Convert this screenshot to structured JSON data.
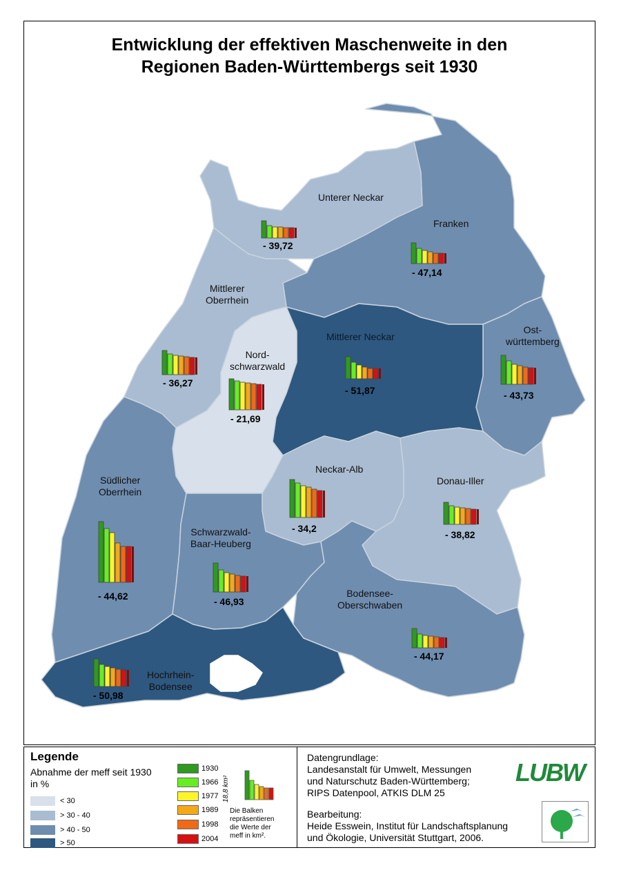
{
  "title": {
    "line1": "Entwicklung der effektiven Maschenweite in den",
    "line2": "Regionen Baden-Württembergs seit 1930"
  },
  "colors": {
    "class_lt30": "#d8e1eb",
    "class_30_40": "#a9bcd1",
    "class_40_50": "#6f8daf",
    "class_gt50": "#2e587f",
    "border": "#c9d3de",
    "year_1930": "#2e9a1e",
    "year_1966": "#66ee22",
    "year_1977": "#fbf52a",
    "year_1989": "#f5a818",
    "year_1998": "#f06a16",
    "year_2004": "#d81010"
  },
  "regions": [
    {
      "name": "Unterer Neckar",
      "value": "- 39,72",
      "class": "30-40"
    },
    {
      "name": "Franken",
      "value": "- 47,14",
      "class": "40-50"
    },
    {
      "name": "Mittlerer Oberrhein",
      "value": "- 36,27",
      "class": "30-40"
    },
    {
      "name": "Nord-schwarzwald",
      "value": "- 21,69",
      "class": "<30"
    },
    {
      "name": "Mittlerer Neckar",
      "value": "- 51,87",
      "class": ">50"
    },
    {
      "name": "Ost-württemberg",
      "value": "- 43,73",
      "class": "40-50"
    },
    {
      "name": "Neckar-Alb",
      "value": "- 34,2",
      "class": "30-40"
    },
    {
      "name": "Donau-Iller",
      "value": "- 38,82",
      "class": "30-40"
    },
    {
      "name": "Südlicher Oberrhein",
      "value": "- 44,62",
      "class": "40-50"
    },
    {
      "name": "Schwarzwald-Baar-Heuberg",
      "value": "- 46,93",
      "class": "40-50"
    },
    {
      "name": "Bodensee-Oberschwaben",
      "value": "- 44,17",
      "class": "40-50"
    },
    {
      "name": "Hochrhein-Bodensee",
      "value": "- 50,98",
      "class": ">50"
    }
  ],
  "labels": {
    "unterer_neckar": "Unterer Neckar",
    "franken": "Franken",
    "mittlerer_oberrhein_1": "Mittlerer",
    "mittlerer_oberrhein_2": "Oberrhein",
    "nordschwarzwald_1": "Nord-",
    "nordschwarzwald_2": "schwarzwald",
    "mittlerer_neckar": "Mittlerer Neckar",
    "ostwuerttemberg_1": "Ost-",
    "ostwuerttemberg_2": "württemberg",
    "neckar_alb": "Neckar-Alb",
    "donau_iller": "Donau-Iller",
    "suedlicher_oberrhein_1": "Südlicher",
    "suedlicher_oberrhein_2": "Oberrhein",
    "sbh_1": "Schwarzwald-",
    "sbh_2": "Baar-Heuberg",
    "bodensee_1": "Bodensee-",
    "bodensee_2": "Oberschwaben",
    "hochrhein_1": "Hochrhein-",
    "hochrhein_2": "Bodensee"
  },
  "legend": {
    "title": "Legende",
    "subtitle_1": "Abnahme der meff seit 1930",
    "subtitle_2": "in %",
    "classes": [
      "< 30",
      "> 30 - 40",
      "> 40 - 50",
      "> 50"
    ],
    "years": [
      "1930",
      "1966",
      "1977",
      "1989",
      "1998",
      "2004"
    ],
    "scale_label": "18,8 km²",
    "note_1": "Die Balken",
    "note_2": "repräsentieren",
    "note_3": "die Werte der",
    "note_4": "meff in km²."
  },
  "source": {
    "heading": "Datengrundlage:",
    "line1": "Landesanstalt für Umwelt, Messungen",
    "line2": "und Naturschutz Baden-Württemberg;",
    "line3": "RIPS Datenpool, ATKIS DLM 25",
    "heading2": "Bearbeitung:",
    "line4": "Heide Esswein, Institut für Landschaftsplanung",
    "line5": "und Ökologie, Universität Stuttgart, 2006."
  },
  "logo": {
    "text": "LUBW",
    "icon": "tree-bird-logo"
  }
}
